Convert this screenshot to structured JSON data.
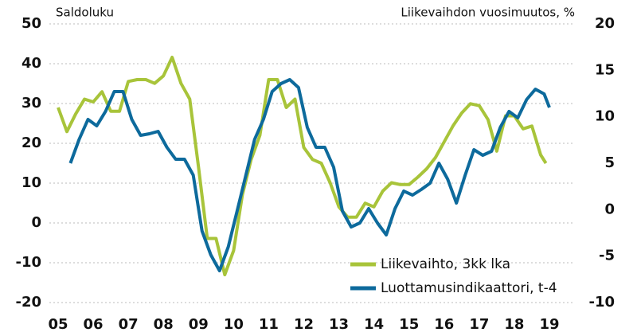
{
  "chart_data": {
    "type": "line",
    "y_label": "Saldoluku",
    "y2_label": "Liikevaihdon vuosimuutos, %",
    "xlim": [
      2005,
      2019
    ],
    "xticks": [
      {
        "value": 2005,
        "label": "05"
      },
      {
        "value": 2006,
        "label": "06"
      },
      {
        "value": 2007,
        "label": "07"
      },
      {
        "value": 2008,
        "label": "08"
      },
      {
        "value": 2009,
        "label": "09"
      },
      {
        "value": 2010,
        "label": "10"
      },
      {
        "value": 2011,
        "label": "11"
      },
      {
        "value": 2012,
        "label": "12"
      },
      {
        "value": 2013,
        "label": "13"
      },
      {
        "value": 2014,
        "label": "14"
      },
      {
        "value": 2015,
        "label": "15"
      },
      {
        "value": 2016,
        "label": "16"
      },
      {
        "value": 2017,
        "label": "17"
      },
      {
        "value": 2018,
        "label": "18"
      },
      {
        "value": 2019,
        "label": "19"
      }
    ],
    "ylim": [
      -20,
      50
    ],
    "yticks": [
      -20,
      -10,
      0,
      10,
      20,
      30,
      40,
      50
    ],
    "y2lim": [
      -10,
      20
    ],
    "y2ticks": [
      -10,
      -5,
      0,
      5,
      10,
      15,
      20
    ],
    "grid": true,
    "legend": "lower right",
    "series": [
      {
        "name": "Liikevaihto, 3kk lka",
        "color": "#a8c43a",
        "axis": "y2",
        "x": [
          2005,
          2005.25,
          2005.5,
          2005.75,
          2006,
          2006.25,
          2006.5,
          2006.75,
          2007,
          2007.25,
          2007.5,
          2007.75,
          2008,
          2008.25,
          2008.5,
          2008.75,
          2009,
          2009.25,
          2009.5,
          2009.75,
          2010,
          2010.25,
          2010.5,
          2010.75,
          2011,
          2011.25,
          2011.5,
          2011.75,
          2012,
          2012.25,
          2012.5,
          2012.75,
          2013,
          2013.25,
          2013.5,
          2013.75,
          2014,
          2014.25,
          2014.5,
          2014.75,
          2015,
          2015.25,
          2015.5,
          2015.75,
          2016,
          2016.25,
          2016.5,
          2016.75,
          2017,
          2017.25,
          2017.5,
          2017.75,
          2018,
          2018.25,
          2018.5,
          2018.75,
          2018.9
        ],
        "values": [
          11.0,
          8.4,
          10.3,
          11.9,
          11.6,
          12.7,
          10.6,
          10.6,
          13.8,
          14.0,
          14.0,
          13.6,
          14.4,
          16.4,
          13.6,
          11.9,
          4.6,
          -3.1,
          -3.1,
          -7.0,
          -4.4,
          1.6,
          5.4,
          8.0,
          14.0,
          14.0,
          11.0,
          11.9,
          6.7,
          5.4,
          5.0,
          2.9,
          0.3,
          -0.8,
          -0.8,
          0.7,
          0.3,
          2.0,
          2.9,
          2.7,
          2.7,
          3.5,
          4.4,
          5.6,
          7.3,
          9.0,
          10.4,
          11.4,
          11.2,
          9.7,
          6.3,
          10.1,
          10.1,
          8.7,
          9.0,
          5.9,
          5.0
        ]
      },
      {
        "name": "Luottamusindikaattori, t-4",
        "color": "#0d6a9c",
        "x": [
          2005.35,
          2005.6,
          2005.85,
          2006.1,
          2006.35,
          2006.6,
          2006.85,
          2007.1,
          2007.35,
          2007.6,
          2007.85,
          2008.1,
          2008.35,
          2008.6,
          2008.85,
          2009.1,
          2009.35,
          2009.6,
          2009.85,
          2010.1,
          2010.35,
          2010.6,
          2010.85,
          2011.1,
          2011.35,
          2011.6,
          2011.85,
          2012.1,
          2012.35,
          2012.6,
          2012.85,
          2013.1,
          2013.35,
          2013.6,
          2013.85,
          2014.1,
          2014.35,
          2014.6,
          2014.85,
          2015.1,
          2015.35,
          2015.6,
          2015.85,
          2016.1,
          2016.35,
          2016.6,
          2016.85,
          2017.1,
          2017.35,
          2017.6,
          2017.85,
          2018.1,
          2018.35,
          2018.6,
          2018.85,
          2019.0
        ],
        "values": [
          15,
          21,
          26,
          24.4,
          28,
          33,
          33,
          26,
          22,
          22.4,
          23,
          19,
          16,
          16,
          12,
          -2,
          -8,
          -12,
          -6,
          3,
          12,
          21,
          26,
          33,
          35,
          36,
          34,
          24,
          19,
          19,
          14,
          3,
          -1,
          0,
          3.6,
          0,
          -3,
          3.6,
          8,
          7,
          8.4,
          10,
          15,
          11,
          5,
          12,
          18.4,
          17,
          18,
          24,
          28,
          26.4,
          31,
          33.6,
          32.4,
          29
        ]
      }
    ]
  }
}
